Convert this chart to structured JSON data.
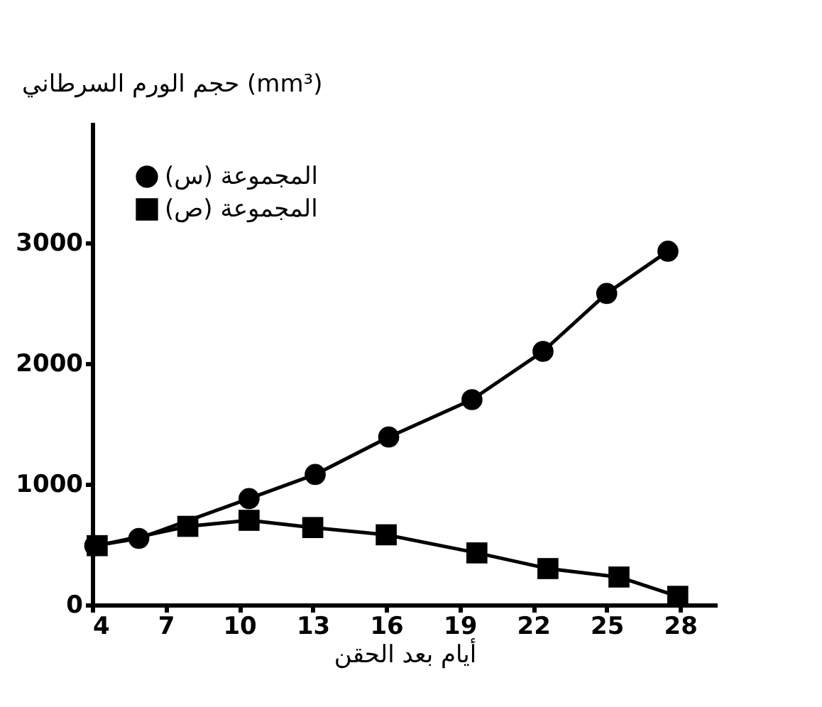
{
  "chart_data": {
    "type": "line",
    "ylabel": "حجم الورم السرطاني (mm³)",
    "xlabel": "أيام بعد الحقن",
    "xlim": [
      4,
      29.5
    ],
    "xticks": [
      4,
      7,
      10,
      13,
      16,
      19,
      22,
      25,
      28
    ],
    "ylim": [
      0,
      4000
    ],
    "yticks": [
      0,
      1000,
      2000,
      3000
    ],
    "grid": false,
    "legend": "top left",
    "line_style": "solid",
    "series": [
      {
        "name": "المجموعة (س)",
        "color": "#000000",
        "marker": "circle",
        "x": [
          4.1,
          5.9,
          10.4,
          13.1,
          16.1,
          19.5,
          22.4,
          25.0,
          27.5
        ],
        "values": [
          490,
          550,
          880,
          1080,
          1390,
          1700,
          2100,
          2580,
          2930
        ]
      },
      {
        "name": "المجموعة (ص)",
        "color": "#000000",
        "marker": "square",
        "x": [
          4.2,
          7.9,
          10.4,
          13.0,
          16.0,
          19.7,
          22.6,
          25.5,
          27.9
        ],
        "values": [
          490,
          650,
          700,
          640,
          580,
          430,
          300,
          230,
          70
        ]
      }
    ]
  }
}
